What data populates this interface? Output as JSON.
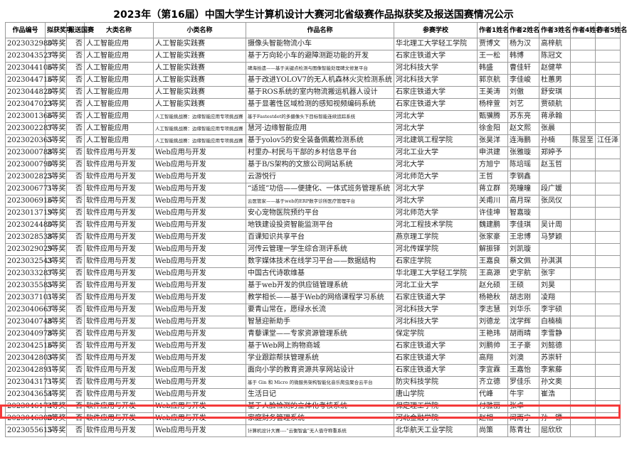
{
  "title": "2023年（第16届）中国大学生计算机设计大赛河北省级赛作品拟获奖及报送国赛情况公示",
  "headers": [
    "作品编号",
    "拟获奖项",
    "报送国赛",
    "大类名称",
    "小类名称",
    "作品名称",
    "参赛学校",
    "作者1姓名",
    "作者2姓名",
    "作者3姓名",
    "作者4姓名",
    "作者5姓名"
  ],
  "highlight_color": "#f43a3a",
  "highlighted_row_id": "2023046174",
  "rows": [
    [
      "2023032980",
      "3等奖",
      "否",
      "人工智能应用",
      "人工智能实践赛",
      "摄像头智能物流小车",
      "华北理工大学轻工学院",
      "贾博文",
      "杨为汉",
      "高梓航",
      "",
      ""
    ],
    [
      "2023043527",
      "3等奖",
      "否",
      "人工智能应用",
      "人工智能实践赛",
      "基于万向轮小车的避障测距功能的开发",
      "石家庄铁道大学",
      "王一松",
      "韩博",
      "陈冠文",
      "",
      ""
    ],
    [
      "2023044106",
      "3等奖",
      "否",
      "人工智能应用",
      "人工智能实践赛",
      "碑海拾遗——基于关键点检测与图像智能处理碑文修复平台",
      "河北科技大学",
      "韩盛",
      "曹佳轩",
      "赵健苹",
      "",
      ""
    ],
    [
      "2023044716",
      "3等奖",
      "否",
      "人工智能应用",
      "人工智能实践赛",
      "基于改进YOLOV7的无人机森林火灾检测系统",
      "河北科技大学",
      "郭京航",
      "李佳峻",
      "杜蕙男",
      "",
      ""
    ],
    [
      "2023044820",
      "3等奖",
      "否",
      "人工智能应用",
      "人工智能实践赛",
      "基于ROS系统的室内物流搬运机器人设计",
      "石家庄铁道大学",
      "王美涛",
      "刘傲",
      "舒安琪",
      "",
      ""
    ],
    [
      "2023047023",
      "3等奖",
      "否",
      "人工智能应用",
      "人工智能实践赛",
      "基于显著性区域检测的感知视频编码系统",
      "石家庄铁道大学",
      "杨梓萱",
      "刘艺",
      "贾硕航",
      "",
      ""
    ],
    [
      "2023001366",
      "3等奖",
      "否",
      "人工智能应用",
      "人工智能挑战赛：边缘智能应用专项挑战赛",
      "基于Fastestdet的多摄像头下目标智能连续追踪系统",
      "河北大学",
      "甄骥腾",
      "苏东亮",
      "蒋承翰",
      "",
      ""
    ],
    [
      "2023002287",
      "3等奖",
      "否",
      "人工智能应用",
      "人工智能挑战赛：边缘智能应用专项挑战赛",
      "慧河·边缘智能应用",
      "河北大学",
      "徐金阳",
      "赵文熙",
      "张晨",
      "",
      ""
    ],
    [
      "2023020365",
      "3等奖",
      "否",
      "人工智能应用",
      "人工智能挑战赛：边缘智能应用专项挑战赛",
      "基于yolov5的安全装备佩戴检测系统",
      "河北建筑工程学院",
      "张昊洋",
      "连海鹏",
      "孙楠",
      "陈昱至",
      "江任泽"
    ],
    [
      "2023000788",
      "3等奖",
      "否",
      "软件应用与开发",
      "Web应用与开发",
      "村里办-村民与干部的乡村信息平台",
      "河北工业大学",
      "申洪建",
      "张雅璇",
      "郑婷予",
      "",
      ""
    ],
    [
      "2023000790",
      "3等奖",
      "否",
      "软件应用与开发",
      "Web应用与开发",
      "基于B/S架构的文旅公司网站系统",
      "河北大学",
      "方旭宁",
      "陈培瑶",
      "赵玉哲",
      "",
      ""
    ],
    [
      "2023002825",
      "3等奖",
      "否",
      "软件应用与开发",
      "Web应用与开发",
      "云游悦行",
      "河北师范大学",
      "王哲",
      "李钢鑫",
      "",
      "",
      ""
    ],
    [
      "2023006771",
      "3等奖",
      "否",
      "软件应用与开发",
      "Web应用与开发",
      "“适班”功倍——便捷化、一体式班务管理系统",
      "河北大学",
      "蒋立群",
      "苑曈曈",
      "段广媛",
      "",
      ""
    ],
    [
      "2023006916",
      "3等奖",
      "否",
      "软件应用与开发",
      "Web应用与开发",
      "云医管家——基于web的ERP数字诊所医疗管理平台",
      "河北大学",
      "关甫川",
      "高月琛",
      "张凤仪",
      "",
      ""
    ],
    [
      "2023013719",
      "3等奖",
      "否",
      "软件应用与开发",
      "Web应用与开发",
      "安心宠物医院预约平台",
      "河北师范大学",
      "许佳坤",
      "智嘉璇",
      "",
      "",
      ""
    ],
    [
      "2023024480",
      "3等奖",
      "否",
      "软件应用与开发",
      "Web应用与开发",
      "地铁建设投资智能监测平台",
      "河北工程技术学院",
      "魏建鹏",
      "李佳琪",
      "吴计周",
      "",
      ""
    ],
    [
      "2023028538",
      "3等奖",
      "否",
      "软件应用与开发",
      "Web应用与开发",
      "百课知识共享平台",
      "燕京理工学院",
      "张家豪",
      "王忠博",
      "马梦颖",
      "",
      ""
    ],
    [
      "2023029029",
      "3等奖",
      "否",
      "软件应用与开发",
      "Web应用与开发",
      "河传云管理一学生综合测评系统",
      "河北传媒学院",
      "解振铎",
      "刘凯璇",
      "",
      "",
      ""
    ],
    [
      "2023032543",
      "3等奖",
      "否",
      "软件应用与开发",
      "Web应用与开发",
      "数字媒体技术在线学习平台——数据结构",
      "石家庄学院",
      "王嘉良",
      "蔡文佩",
      "孙淇淇",
      "",
      ""
    ],
    [
      "2023033287",
      "3等奖",
      "否",
      "软件应用与开发",
      "Web应用与开发",
      "中国古代诗歌维基",
      "华北理工大学轻工学院",
      "王高源",
      "史宇航",
      "张宇",
      "",
      ""
    ],
    [
      "2023035585",
      "3等奖",
      "否",
      "软件应用与开发",
      "Web应用与开发",
      "基于web开发的供应链管理系统",
      "河北工业大学",
      "赵允硕",
      "王硕",
      "刘昊",
      "",
      ""
    ],
    [
      "2023037101",
      "3等奖",
      "否",
      "软件应用与开发",
      "Web应用与开发",
      "教学相长——基于Web的网络课程学习系统",
      "石家庄铁道大学",
      "杨艳秋",
      "胡志刚",
      "凌翔",
      "",
      ""
    ],
    [
      "2023040667",
      "3等奖",
      "否",
      "软件应用与开发",
      "Web应用与开发",
      "要青山常在，愿绿水长流",
      "河北科技大学",
      "李志慧",
      "刘华乐",
      "李宇硕",
      "",
      ""
    ],
    [
      "2023040748",
      "3等奖",
      "否",
      "软件应用与开发",
      "Web应用与开发",
      "智慧迎新助手",
      "河北科技大学",
      "刘德龙",
      "沈学辉",
      "白楠楠",
      "",
      ""
    ],
    [
      "2023040978",
      "3等奖",
      "否",
      "软件应用与开发",
      "Web应用与开发",
      "青藜课堂——专家资源管理系统",
      "保定学院",
      "王艳玮",
      "胡雨晴",
      "李雪静",
      "",
      ""
    ],
    [
      "2023042516",
      "3等奖",
      "否",
      "软件应用与开发",
      "Web应用与开发",
      "基于Web网上购物商城",
      "石家庄铁道大学",
      "刘鹏帅",
      "王子豪",
      "刘懿德",
      "",
      ""
    ],
    [
      "2023042803",
      "3等奖",
      "否",
      "软件应用与开发",
      "Web应用与开发",
      "学业跟踪帮扶管理系统",
      "石家庄铁道大学",
      "高翔",
      "刘澳",
      "苏崇轩",
      "",
      ""
    ],
    [
      "2023042891",
      "3等奖",
      "否",
      "软件应用与开发",
      "Web应用与开发",
      "面向小学的教育资源共享网站设计",
      "石家庄铁道大学",
      "李宜霖",
      "王嘉怡",
      "李紫藤",
      "",
      ""
    ],
    [
      "2023043171",
      "3等奖",
      "否",
      "软件应用与开发",
      "Web应用与开发",
      "基于 Gin 和 Micro 的微服务架构智能化音乐爬虫聚合云平台",
      "防灾科技学院",
      "齐立德",
      "罗佳乐",
      "孙文奥",
      "",
      ""
    ],
    [
      "2023043654",
      "3等奖",
      "否",
      "软件应用与开发",
      "Web应用与开发",
      "生活日记",
      "唐山学院",
      "代峰",
      "牛宇",
      "崔浩",
      "",
      ""
    ],
    [
      "2023046174",
      "3等奖",
      "否",
      "软件应用与开发",
      "Web应用与开发",
      "基于人脸检测的立体化考核系统",
      "保定理工学院",
      "付雅丽",
      "张卓",
      "",
      "",
      ""
    ],
    [
      "2023046308",
      "3等奖",
      "否",
      "软件应用与开发",
      "Web应用与开发",
      "家庭财务管理系统",
      "河北金融学院",
      "赵相",
      "闫雨宁",
      "孙一镖",
      "",
      ""
    ],
    [
      "2023055615",
      "3等奖",
      "否",
      "软件应用与开发",
      "Web应用与开发",
      "计算机设计大赛----“云衡智盒”无人值守称重系统",
      "北华航天工业学院",
      "尚策",
      "陈青壮",
      "屈欣欣",
      "",
      ""
    ]
  ]
}
